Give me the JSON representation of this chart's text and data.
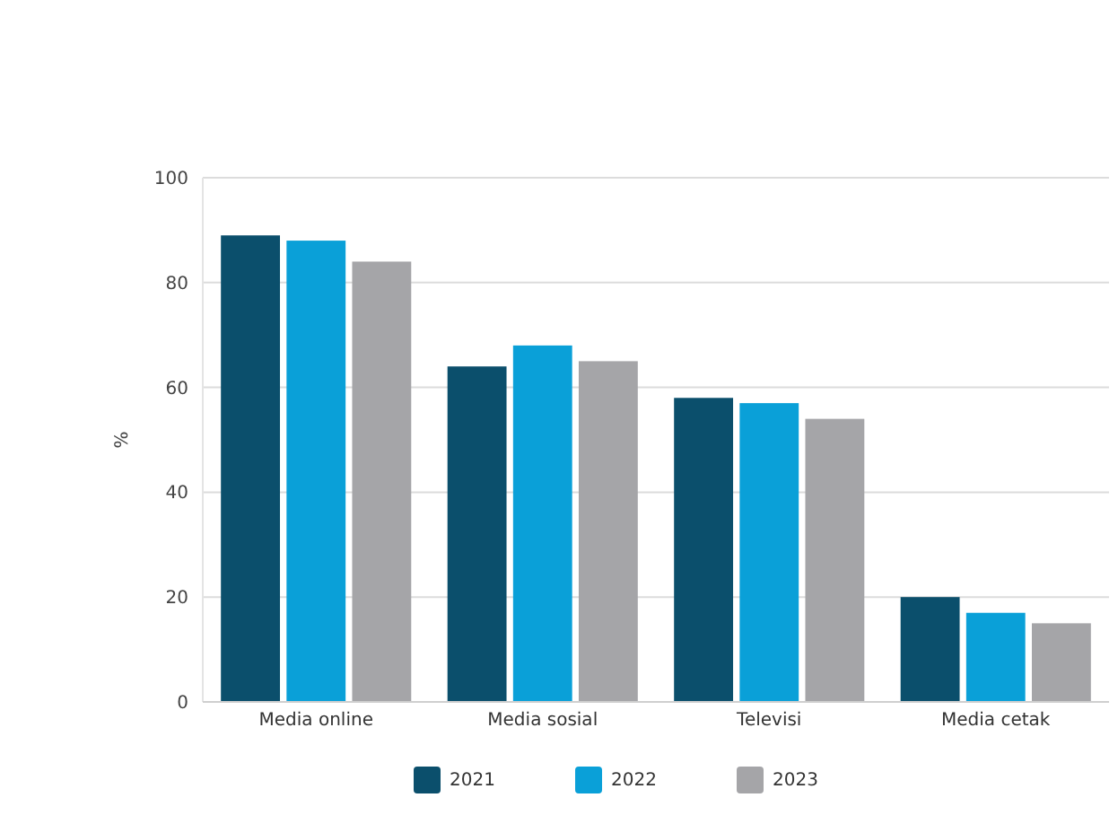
{
  "chart_data": {
    "type": "bar",
    "ylabel": "%",
    "categories": [
      "Media online",
      "Media sosial",
      "Televisi",
      "Media cetak"
    ],
    "series": [
      {
        "name": "2021",
        "color": "#0b4f6c",
        "values": [
          89,
          64,
          58,
          20
        ]
      },
      {
        "name": "2022",
        "color": "#0aa0d8",
        "values": [
          88,
          68,
          57,
          17
        ]
      },
      {
        "name": "2023",
        "color": "#a5a5a8",
        "values": [
          84,
          65,
          54,
          15
        ]
      }
    ],
    "ylim": [
      0,
      100
    ],
    "yticks": [
      0,
      20,
      40,
      60,
      80,
      100
    ],
    "grid": "y",
    "legend": "bottom"
  }
}
